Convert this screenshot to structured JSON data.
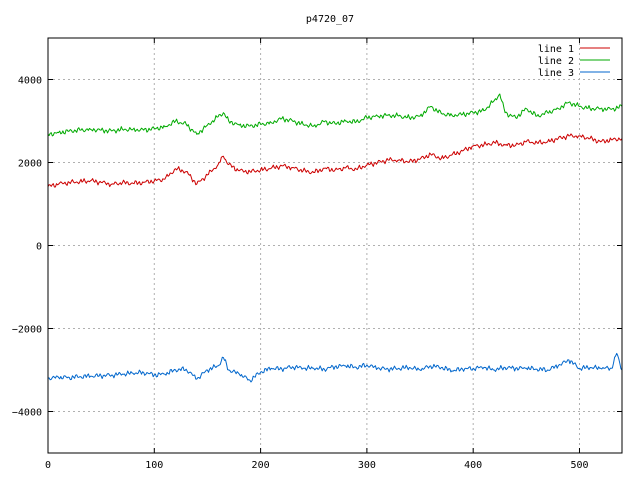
{
  "chart_data": {
    "type": "line",
    "title": "p4720_07",
    "xlabel": "",
    "ylabel": "",
    "xlim": [
      0,
      540
    ],
    "ylim": [
      -5000,
      5000
    ],
    "xticks": [
      0,
      100,
      200,
      300,
      400,
      500
    ],
    "yticks": [
      -4000,
      -2000,
      0,
      2000,
      4000
    ],
    "xtick_labels": [
      "0",
      "100",
      "200",
      "300",
      "400",
      "500"
    ],
    "ytick_labels": [
      "−4000",
      "−2000",
      "0",
      "2000",
      "4000"
    ],
    "grid": true,
    "legend_position": "top-right",
    "series": [
      {
        "name": "line 1",
        "color": "#cc0000",
        "x": [
          0,
          10,
          20,
          30,
          40,
          50,
          60,
          70,
          80,
          90,
          100,
          110,
          120,
          130,
          140,
          150,
          160,
          165,
          170,
          180,
          190,
          200,
          210,
          220,
          230,
          240,
          250,
          260,
          270,
          280,
          290,
          300,
          310,
          320,
          330,
          340,
          350,
          360,
          370,
          380,
          390,
          400,
          410,
          420,
          430,
          440,
          450,
          460,
          470,
          480,
          490,
          500,
          510,
          520,
          530,
          540
        ],
        "values": [
          1420,
          1480,
          1520,
          1540,
          1560,
          1520,
          1480,
          1510,
          1500,
          1520,
          1560,
          1600,
          1850,
          1780,
          1480,
          1700,
          1950,
          2150,
          1950,
          1800,
          1780,
          1820,
          1860,
          1920,
          1880,
          1800,
          1760,
          1860,
          1820,
          1870,
          1840,
          1940,
          2000,
          2060,
          2060,
          2020,
          2080,
          2200,
          2100,
          2180,
          2280,
          2400,
          2420,
          2480,
          2420,
          2420,
          2500,
          2480,
          2500,
          2580,
          2640,
          2640,
          2580,
          2500,
          2550,
          2580
        ]
      },
      {
        "name": "line 2",
        "color": "#00aa00",
        "x": [
          0,
          10,
          20,
          30,
          40,
          50,
          60,
          70,
          80,
          90,
          100,
          110,
          120,
          130,
          140,
          150,
          160,
          165,
          170,
          180,
          190,
          200,
          210,
          220,
          230,
          240,
          250,
          260,
          270,
          280,
          290,
          300,
          310,
          320,
          330,
          340,
          350,
          360,
          370,
          380,
          390,
          400,
          410,
          420,
          425,
          430,
          440,
          450,
          460,
          470,
          480,
          490,
          500,
          510,
          520,
          530,
          540
        ],
        "values": [
          2680,
          2720,
          2760,
          2780,
          2800,
          2780,
          2760,
          2800,
          2800,
          2780,
          2820,
          2860,
          3000,
          2920,
          2680,
          2900,
          3100,
          3200,
          3000,
          2900,
          2880,
          2920,
          2960,
          3060,
          3000,
          2920,
          2880,
          2980,
          2940,
          3000,
          2980,
          3080,
          3120,
          3140,
          3120,
          3080,
          3120,
          3350,
          3180,
          3140,
          3160,
          3200,
          3250,
          3500,
          3650,
          3200,
          3080,
          3300,
          3120,
          3200,
          3300,
          3450,
          3350,
          3300,
          3300,
          3280,
          3350
        ]
      },
      {
        "name": "line 3",
        "color": "#0066cc",
        "x": [
          0,
          10,
          20,
          30,
          40,
          50,
          60,
          70,
          80,
          90,
          100,
          110,
          120,
          130,
          140,
          150,
          160,
          165,
          170,
          180,
          190,
          200,
          210,
          220,
          230,
          240,
          250,
          260,
          270,
          280,
          290,
          300,
          310,
          320,
          330,
          340,
          350,
          360,
          370,
          380,
          390,
          400,
          410,
          420,
          430,
          440,
          450,
          460,
          470,
          480,
          490,
          500,
          510,
          520,
          530,
          535,
          540
        ],
        "values": [
          -3200,
          -3180,
          -3180,
          -3160,
          -3150,
          -3140,
          -3120,
          -3100,
          -3080,
          -3060,
          -3120,
          -3100,
          -3000,
          -2980,
          -3220,
          -3000,
          -2900,
          -2700,
          -3000,
          -3100,
          -3250,
          -3050,
          -2960,
          -2980,
          -2920,
          -2960,
          -2960,
          -2980,
          -2920,
          -2900,
          -2940,
          -2880,
          -2960,
          -2980,
          -2960,
          -2940,
          -3000,
          -2900,
          -2940,
          -3020,
          -2980,
          -2960,
          -2940,
          -3000,
          -2940,
          -2960,
          -2960,
          -2980,
          -3000,
          -2900,
          -2760,
          -2960,
          -2940,
          -2960,
          -2960,
          -2600,
          -3000
        ]
      }
    ]
  }
}
